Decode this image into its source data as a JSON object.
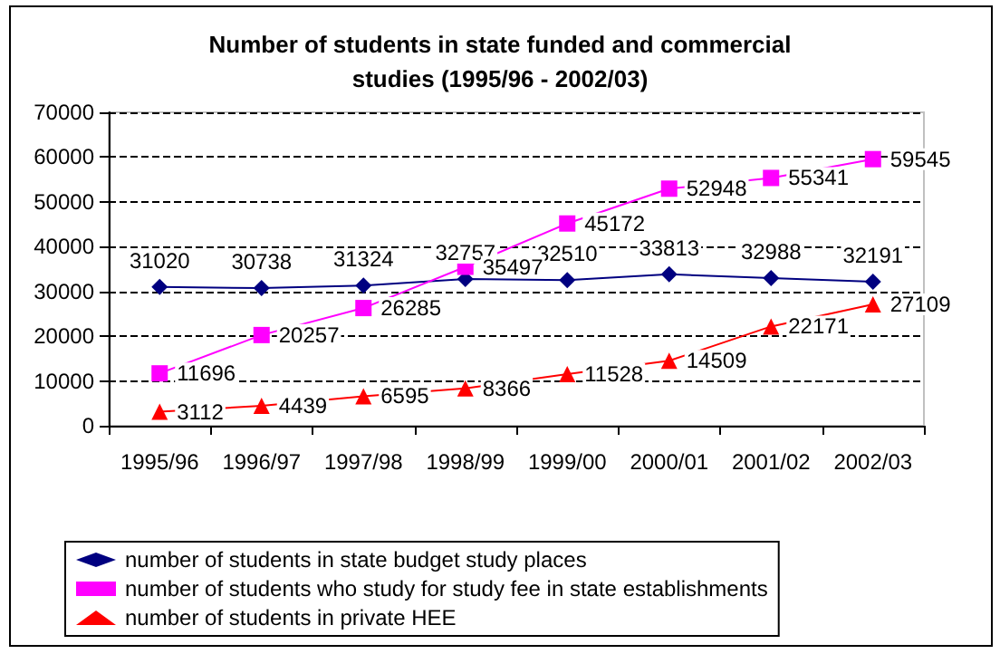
{
  "chart_data": {
    "type": "line",
    "title": "Number of students in state funded and commercial\nstudies (1995/96 - 2002/03)",
    "categories": [
      "1995/96",
      "1996/97",
      "1997/98",
      "1998/99",
      "1999/00",
      "2000/01",
      "2001/02",
      "2002/03"
    ],
    "series": [
      {
        "name": "number of students in state budget study places",
        "color": "#000080",
        "marker": "diamond",
        "values": [
          31020,
          30738,
          31324,
          32757,
          32510,
          33813,
          32988,
          32191
        ]
      },
      {
        "name": "number of students who study for study fee in state establishments",
        "color": "#ff00ff",
        "marker": "square",
        "values": [
          11696,
          20257,
          26285,
          35497,
          45172,
          52948,
          55341,
          59545
        ]
      },
      {
        "name": "number of students in private HEE",
        "color": "#ff0000",
        "marker": "triangle",
        "values": [
          3112,
          4439,
          6595,
          8366,
          11528,
          14509,
          22171,
          27109
        ]
      }
    ],
    "ylim": [
      0,
      70000
    ],
    "yticks": [
      0,
      10000,
      20000,
      30000,
      40000,
      50000,
      60000,
      70000
    ],
    "grid": "y",
    "legend": "bottom",
    "data_labels": true
  }
}
